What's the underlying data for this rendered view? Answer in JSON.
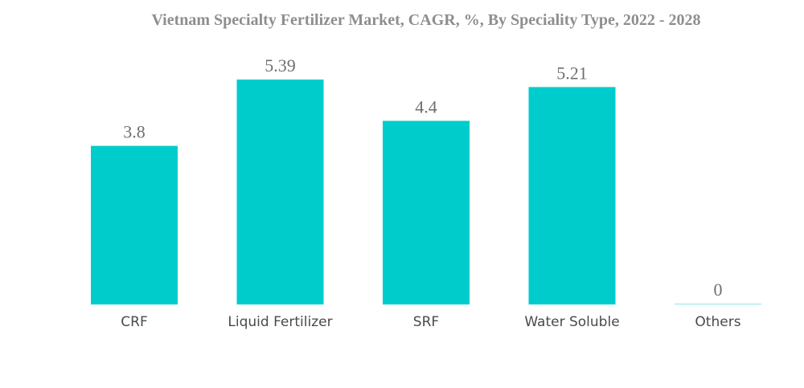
{
  "chart_data": {
    "type": "bar",
    "title": "Vietnam Specialty Fertilizer Market, CAGR, %, By Speciality Type, 2022 - 2028",
    "xlabel": "",
    "ylabel": "",
    "categories": [
      "CRF",
      "Liquid Fertilizer",
      "SRF",
      "Water Soluble",
      "Others"
    ],
    "values": [
      3.8,
      5.39,
      4.4,
      5.21,
      0
    ],
    "value_labels": [
      "3.8",
      "5.39",
      "4.4",
      "5.21",
      "0"
    ],
    "ylim": [
      0,
      5.39
    ],
    "grid": false,
    "legend": "none",
    "bar_color": "#00cccc"
  }
}
